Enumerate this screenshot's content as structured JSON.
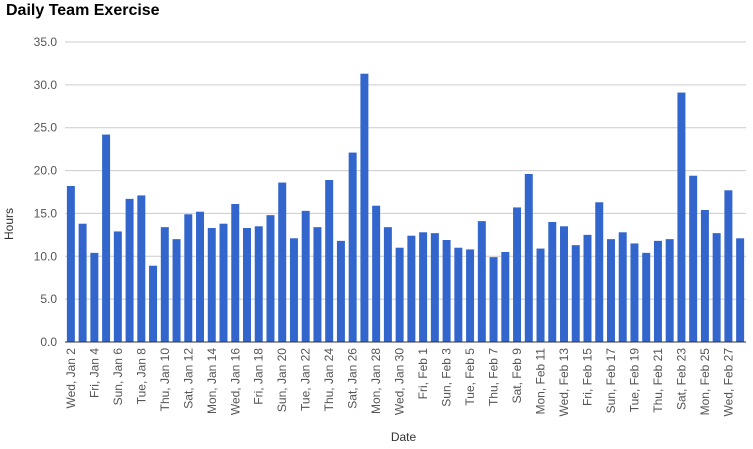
{
  "chart_data": {
    "type": "bar",
    "title": "Daily Team Exercise",
    "xlabel": "Date",
    "ylabel": "Hours",
    "ylim": [
      0,
      35
    ],
    "yticks": [
      "0.0",
      "5.0",
      "10.0",
      "15.0",
      "20.0",
      "25.0",
      "30.0",
      "35.0"
    ],
    "grid": true,
    "legend": "none",
    "bar_color": "#3366cc",
    "grid_color": "#cccccc",
    "baseline_color": "#333333",
    "categories": [
      "Wed, Jan 2",
      "Thu, Jan 3",
      "Fri, Jan 4",
      "Sat, Jan 5",
      "Sun, Jan 6",
      "Mon, Jan 7",
      "Tue, Jan 8",
      "Wed, Jan 9",
      "Thu, Jan 10",
      "Fri, Jan 11",
      "Sat, Jan 12",
      "Sun, Jan 13",
      "Mon, Jan 14",
      "Tue, Jan 15",
      "Wed, Jan 16",
      "Thu, Jan 17",
      "Fri, Jan 18",
      "Sat, Jan 19",
      "Sun, Jan 20",
      "Mon, Jan 21",
      "Tue, Jan 22",
      "Wed, Jan 23",
      "Thu, Jan 24",
      "Fri, Jan 25",
      "Sat, Jan 26",
      "Sun, Jan 27",
      "Mon, Jan 28",
      "Tue, Jan 29",
      "Wed, Jan 30",
      "Thu, Jan 31",
      "Fri, Feb 1",
      "Sat, Feb 2",
      "Sun, Feb 3",
      "Mon, Feb 4",
      "Tue, Feb 5",
      "Wed, Feb 6",
      "Thu, Feb 7",
      "Fri, Feb 8",
      "Sat, Feb 9",
      "Sun, Feb 10",
      "Mon, Feb 11",
      "Tue, Feb 12",
      "Wed, Feb 13",
      "Thu, Feb 14",
      "Fri, Feb 15",
      "Sat, Feb 16",
      "Sun, Feb 17",
      "Mon, Feb 18",
      "Tue, Feb 19",
      "Wed, Feb 20",
      "Thu, Feb 21",
      "Fri, Feb 22",
      "Sat, Feb 23",
      "Sun, Feb 24",
      "Mon, Feb 25",
      "Tue, Feb 26",
      "Wed, Feb 27",
      "Thu, Feb 28"
    ],
    "visible_tick_labels": [
      "Wed, Jan 2",
      "Fri, Jan 4",
      "Sun, Jan 6",
      "Tue, Jan 8",
      "Thu, Jan 10",
      "Sat, Jan 12",
      "Mon, Jan 14",
      "Wed, Jan 16",
      "Fri, Jan 18",
      "Sun, Jan 20",
      "Tue, Jan 22",
      "Thu, Jan 24",
      "Sat, Jan 26",
      "Mon, Jan 28",
      "Wed, Jan 30",
      "Fri, Feb 1",
      "Sun, Feb 3",
      "Tue, Feb 5",
      "Thu, Feb 7",
      "Sat, Feb 9",
      "Mon, Feb 11",
      "Wed, Feb 13",
      "Fri, Feb 15",
      "Sun, Feb 17",
      "Tue, Feb 19",
      "Thu, Feb 21",
      "Sat, Feb 23",
      "Mon, Feb 25",
      "Wed, Feb 27"
    ],
    "values": [
      18.2,
      13.8,
      10.4,
      24.2,
      12.9,
      16.7,
      17.1,
      8.9,
      13.4,
      12.0,
      14.9,
      15.2,
      13.3,
      13.8,
      16.1,
      13.3,
      13.5,
      14.8,
      18.6,
      12.1,
      15.3,
      13.4,
      18.9,
      11.8,
      22.1,
      31.3,
      15.9,
      13.4,
      11.0,
      12.4,
      12.8,
      12.7,
      11.9,
      11.0,
      10.8,
      14.1,
      9.9,
      10.5,
      15.7,
      19.6,
      10.9,
      14.0,
      13.5,
      11.3,
      12.5,
      16.3,
      12.0,
      12.8,
      11.5,
      10.4,
      11.8,
      12.0,
      29.1,
      19.4,
      15.4,
      12.7,
      17.7,
      12.1
    ]
  }
}
